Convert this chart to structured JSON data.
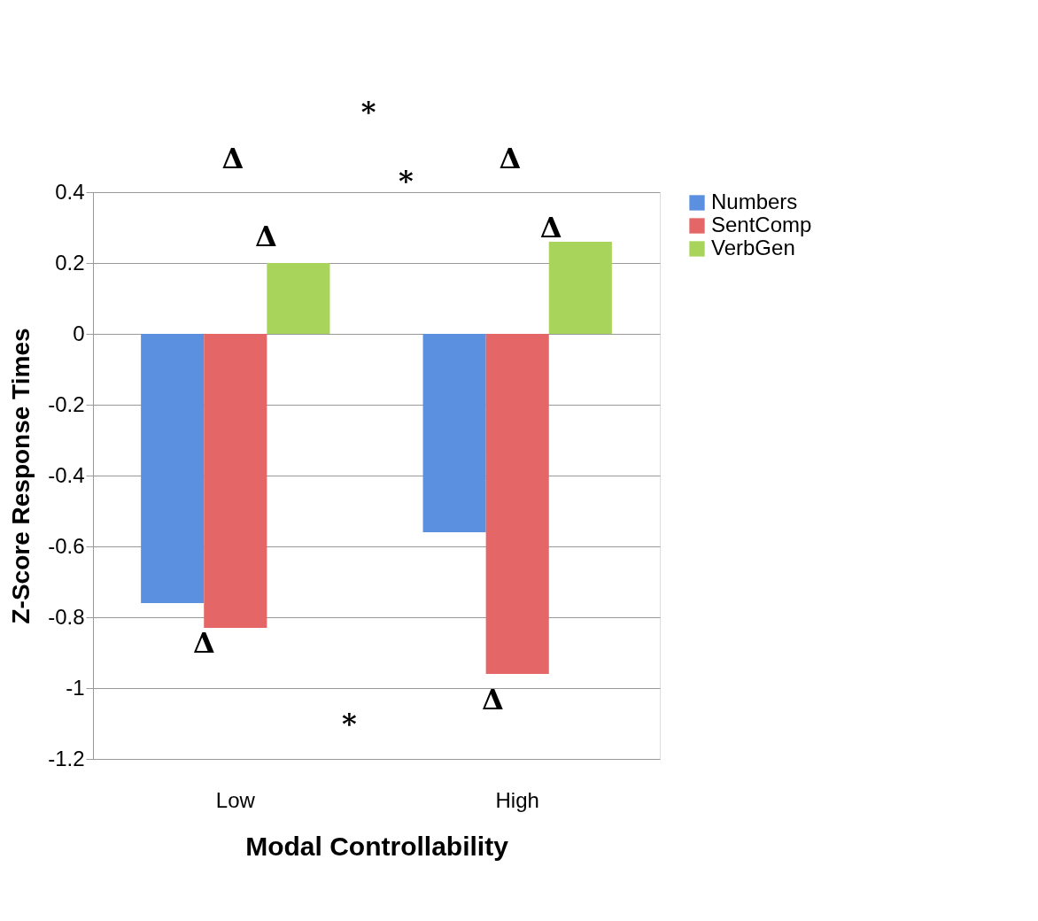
{
  "chart_data": {
    "type": "bar",
    "categories": [
      "Low",
      "High"
    ],
    "series": [
      {
        "name": "Numbers",
        "color": "#5b8fe0",
        "values": [
          -0.76,
          -0.56
        ]
      },
      {
        "name": "SentComp",
        "color": "#e46666",
        "values": [
          -0.83,
          -0.96
        ]
      },
      {
        "name": "VerbGen",
        "color": "#a8d45c",
        "values": [
          0.2,
          0.26
        ]
      }
    ],
    "xlabel": "Modal Controllability",
    "ylabel": "Z-Score Response Times",
    "ylim": [
      -1.2,
      0.4
    ],
    "yticks": [
      -1.2,
      -1,
      -0.8,
      -0.6,
      -0.4,
      -0.2,
      0,
      0.2,
      0.4
    ],
    "grid": "y",
    "legend": "right",
    "annotations": [
      "*",
      "Δ",
      "Δ",
      "*",
      "Δ",
      "Δ",
      "Δ",
      "Δ",
      "*"
    ]
  }
}
